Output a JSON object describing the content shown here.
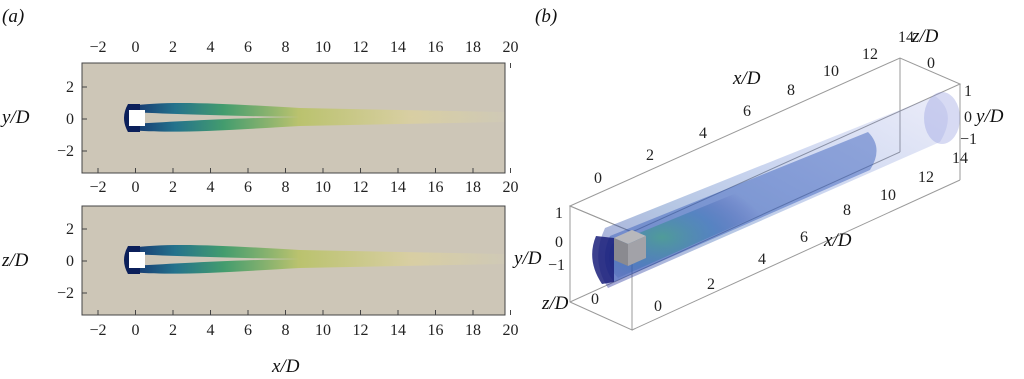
{
  "panel_a": {
    "label": "(a)",
    "top": {
      "ylabel": "y/D",
      "xticks": [
        "−2",
        "0",
        "2",
        "4",
        "6",
        "8",
        "10",
        "12",
        "14",
        "16",
        "18",
        "20"
      ],
      "yticks": [
        "2",
        "0",
        "−2"
      ]
    },
    "bottom": {
      "ylabel": "z/D",
      "xticks": [
        "−2",
        "0",
        "2",
        "4",
        "6",
        "8",
        "10",
        "12",
        "14",
        "16",
        "18",
        "20"
      ],
      "yticks": [
        "2",
        "0",
        "−2"
      ]
    },
    "top_xticks_above": [
      "−2",
      "0",
      "2",
      "4",
      "6",
      "8",
      "10",
      "12",
      "14",
      "16",
      "18",
      "20"
    ],
    "xlabel": "x/D"
  },
  "panel_b": {
    "label": "(b)",
    "x_axis_top": {
      "label": "x/D",
      "ticks": [
        "0",
        "2",
        "4",
        "6",
        "8",
        "10",
        "12",
        "14"
      ]
    },
    "x_axis_bottom": {
      "label": "x/D",
      "ticks": [
        "0",
        "2",
        "4",
        "6",
        "8",
        "10",
        "12",
        "14"
      ]
    },
    "z_axis_top": {
      "label": "z/D",
      "ticks": [
        "0"
      ]
    },
    "y_axis_right": {
      "label": "y/D",
      "ticks": [
        "1",
        "0",
        "−1"
      ]
    },
    "y_axis_left": {
      "label": "y/D",
      "ticks": [
        "1",
        "0",
        "−1"
      ]
    },
    "z_axis_bottom": {
      "label": "z/D",
      "ticks": [
        "0"
      ]
    }
  }
}
